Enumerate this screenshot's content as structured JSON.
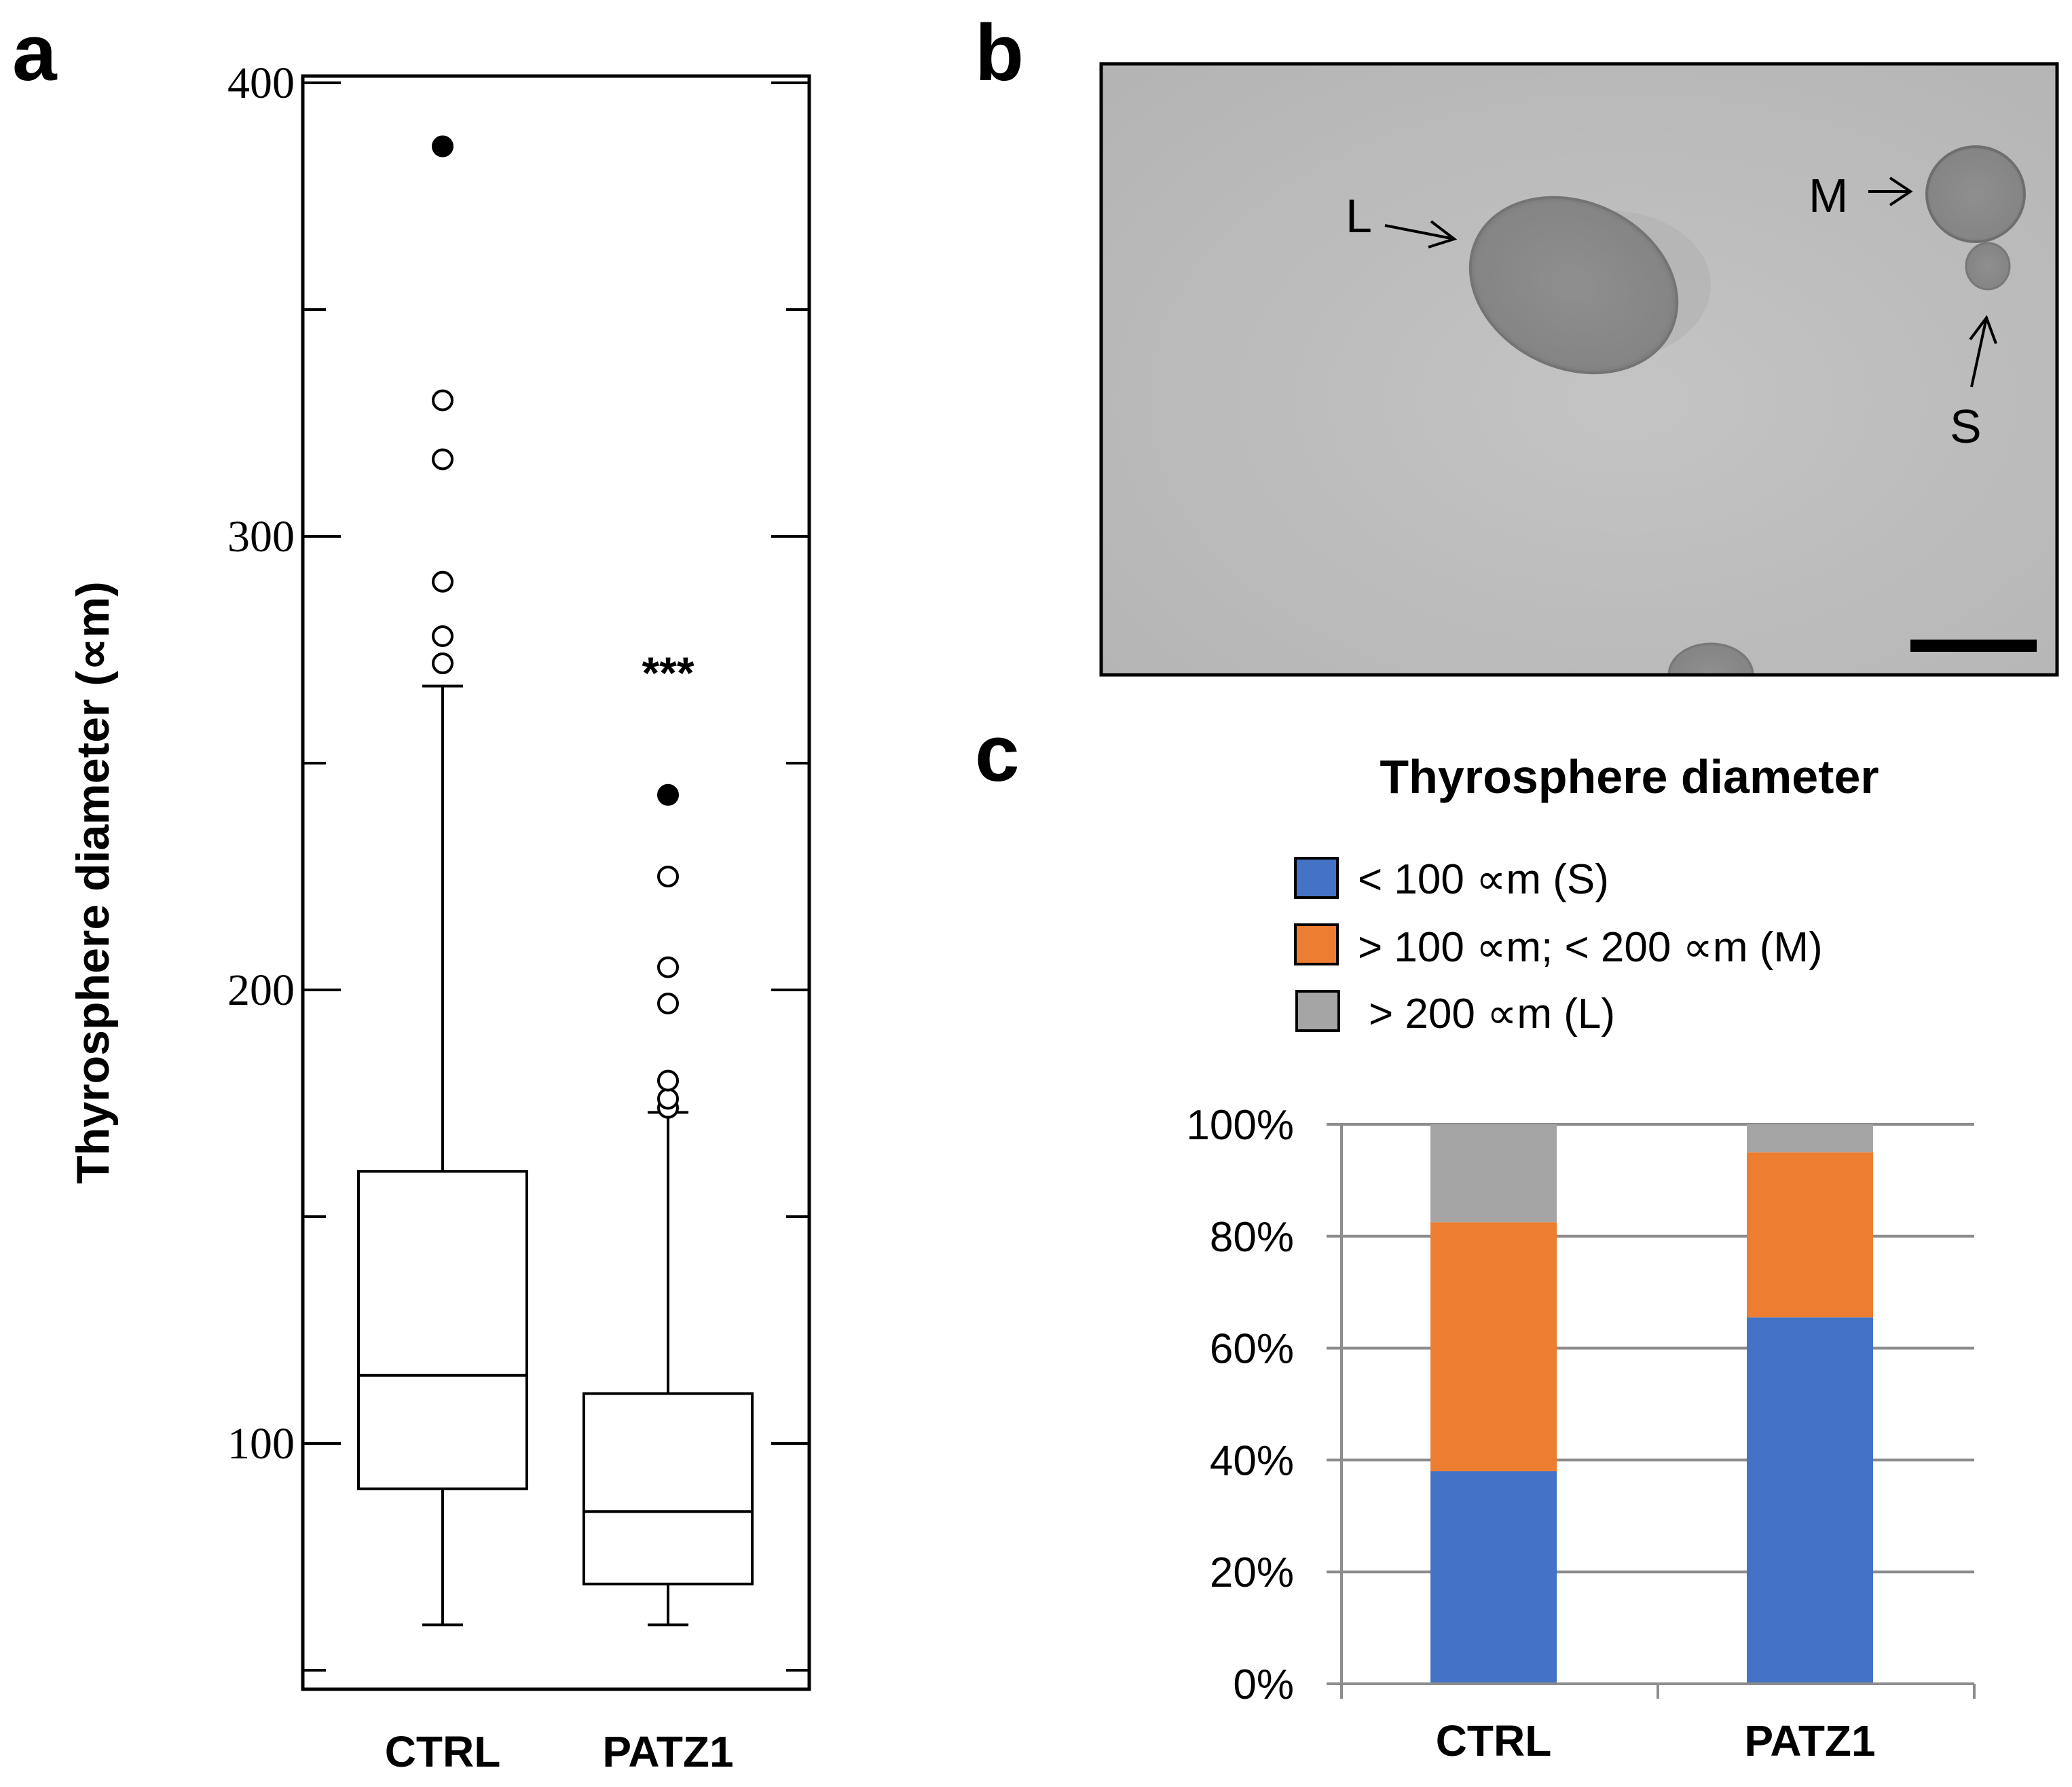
{
  "panels": {
    "a": "a",
    "b": "b",
    "c": "c"
  },
  "colors": {
    "small": "#4472C4",
    "medium": "#ED7D31",
    "large": "#A5A5A5",
    "grid": "#8C8C8C",
    "micrograph_bg": "#BDBDBD",
    "sphere": "#8A8A8A"
  },
  "chart_data": [
    {
      "panel": "a",
      "type": "box",
      "title": "",
      "xlabel": "",
      "ylabel": "Thyrosphere diameter (∝m)",
      "ylim": [
        45,
        405
      ],
      "yticks_major": [
        100,
        200,
        300,
        400
      ],
      "yticks_minor": [
        50,
        150,
        250,
        350
      ],
      "categories": [
        "CTRL",
        "PATZ1"
      ],
      "series": [
        {
          "category": "CTRL",
          "whisker_low": 60,
          "q1": 90,
          "median": 115,
          "q3": 160,
          "whisker_high": 267,
          "outliers_open": [
            272,
            278,
            290,
            317,
            330
          ],
          "outliers_extreme": [
            386
          ]
        },
        {
          "category": "PATZ1",
          "whisker_low": 60,
          "q1": 69,
          "median": 85,
          "q3": 111,
          "whisker_high": 173,
          "outliers_open": [
            174,
            176,
            180,
            197,
            205,
            225
          ],
          "outliers_extreme": [
            243
          ]
        }
      ],
      "annotations": [
        {
          "text": "***",
          "category": "PATZ1",
          "y": 268
        }
      ]
    },
    {
      "panel": "c",
      "type": "bar",
      "stacked": true,
      "title": "Thyrosphere diameter",
      "xlabel": "",
      "ylabel": "",
      "ylim": [
        0,
        100
      ],
      "ytick_labels": [
        "0%",
        "20%",
        "40%",
        "60%",
        "80%",
        "100%"
      ],
      "yticks": [
        0,
        20,
        40,
        60,
        80,
        100
      ],
      "grid": true,
      "legend_position": "top",
      "categories": [
        "CTRL",
        "PATZ1"
      ],
      "series": [
        {
          "name": "< 100 ∝m (S)",
          "color_key": "small",
          "values": [
            38,
            65.5
          ]
        },
        {
          "name": "> 100 ∝m; < 200 ∝m (M)",
          "color_key": "medium",
          "values": [
            44.5,
            29.5
          ]
        },
        {
          "name": "> 200 ∝m (L)",
          "color_key": "large",
          "values": [
            17.5,
            5
          ]
        }
      ]
    }
  ],
  "micrograph": {
    "labels": [
      "L",
      "M",
      "S"
    ]
  }
}
